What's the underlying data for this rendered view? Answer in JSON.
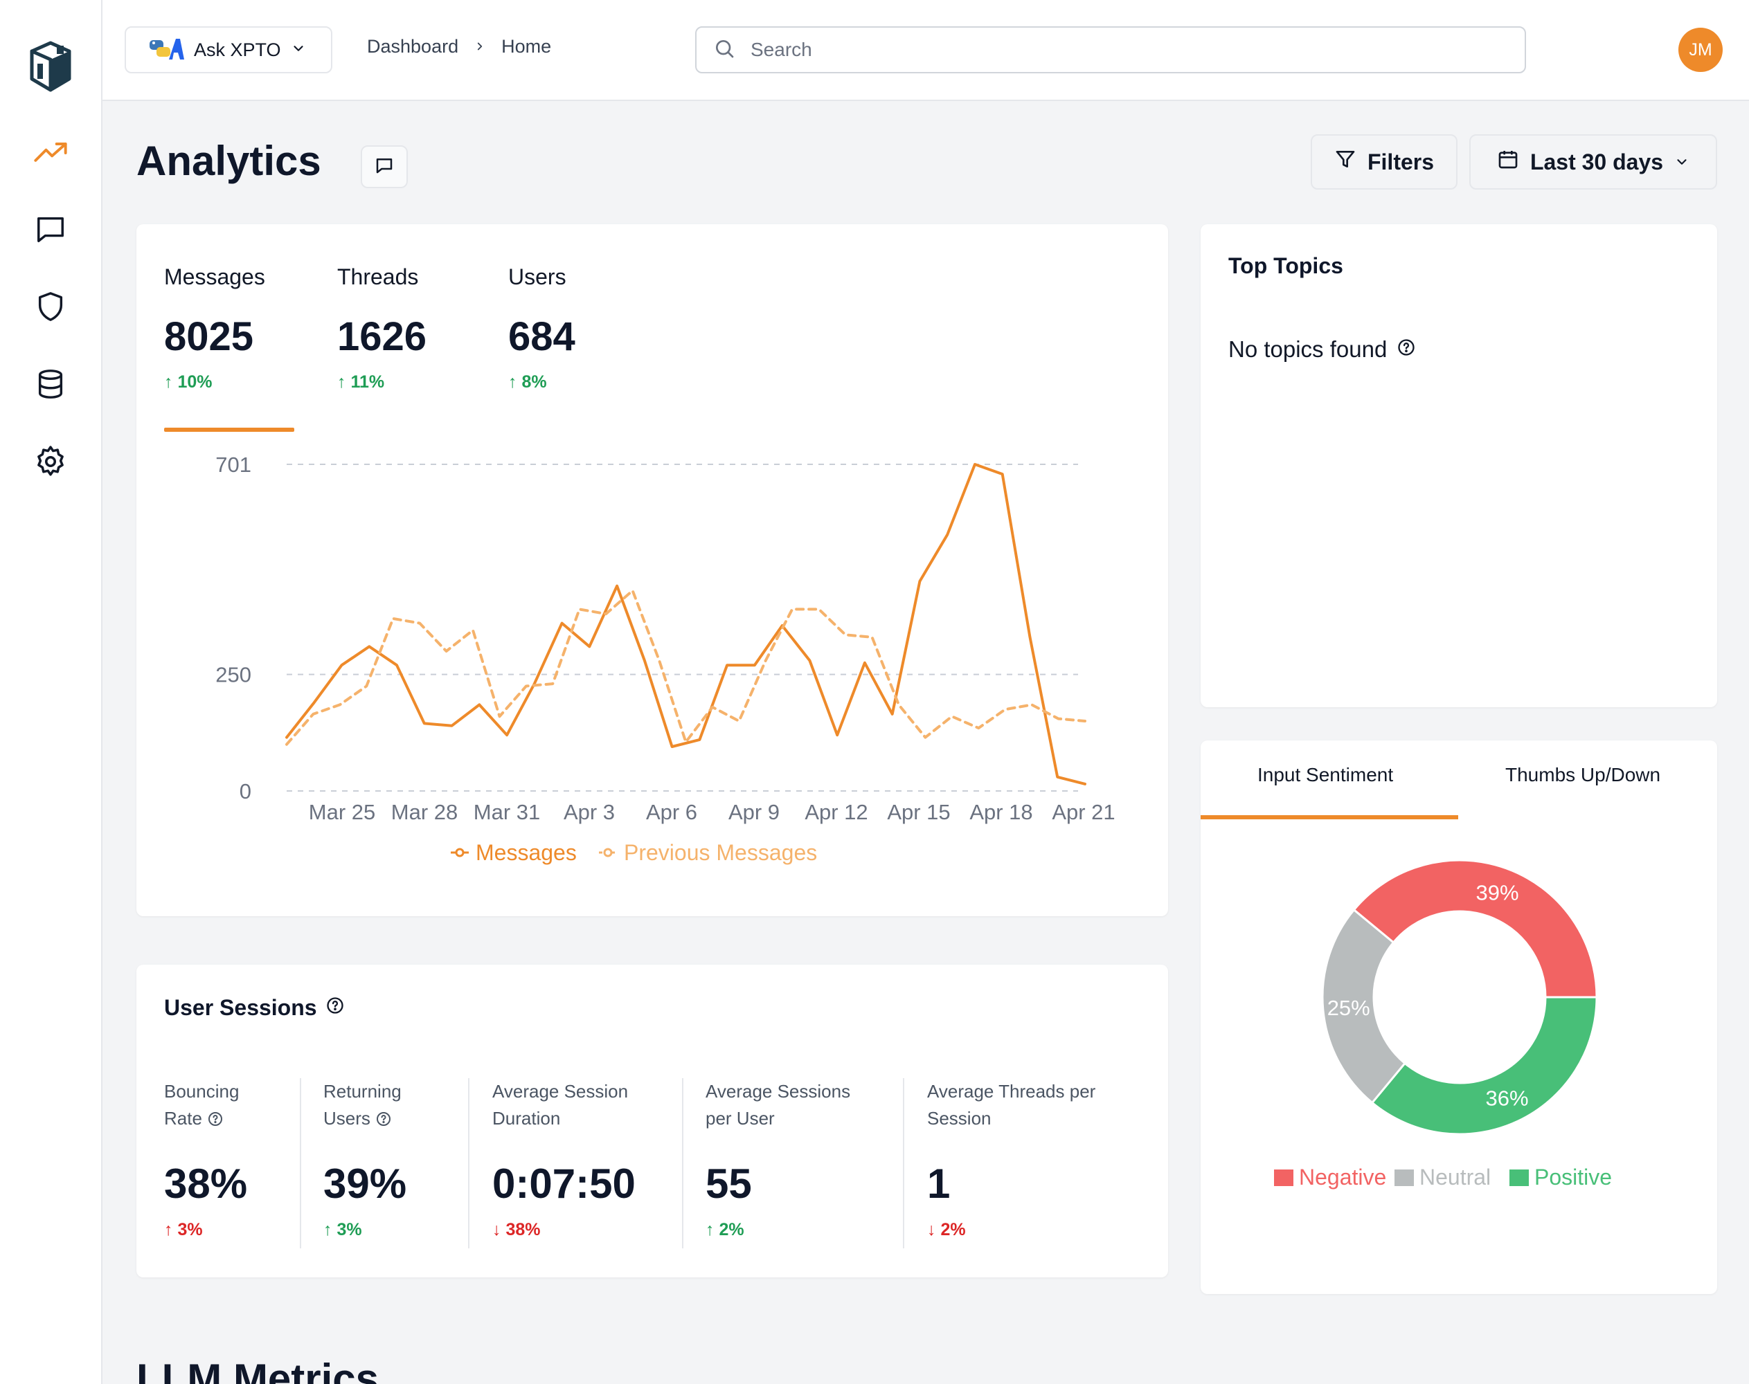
{
  "app": {
    "name": "Ask XPTO"
  },
  "breadcrumb": {
    "items": [
      "Dashboard",
      "Home"
    ]
  },
  "search": {
    "placeholder": "Search",
    "value": ""
  },
  "user": {
    "initials": "JM",
    "avatar_color": "#ee8a2a"
  },
  "page": {
    "title": "Analytics",
    "next_section_title": "LLM Metrics"
  },
  "toolbar": {
    "filters_label": "Filters",
    "range_label": "Last 30 days"
  },
  "metrics": [
    {
      "label": "Messages",
      "value": "8025",
      "delta": "10%",
      "direction": "up"
    },
    {
      "label": "Threads",
      "value": "1626",
      "delta": "11%",
      "direction": "up"
    },
    {
      "label": "Users",
      "value": "684",
      "delta": "8%",
      "direction": "up"
    }
  ],
  "chart_data": [
    {
      "type": "line",
      "title": "",
      "xlabel": "",
      "ylabel": "",
      "x_ticks": [
        "Mar 25",
        "Mar 28",
        "Mar 31",
        "Apr 3",
        "Apr 6",
        "Apr 9",
        "Apr 12",
        "Apr 15",
        "Apr 18",
        "Apr 21"
      ],
      "y_ticks": [
        0,
        250,
        701
      ],
      "ylim": [
        0,
        701
      ],
      "grid": true,
      "legend": "bottom",
      "series": [
        {
          "name": "Messages",
          "color": "#ee8a2a",
          "style": "solid",
          "values": [
            115,
            190,
            270,
            310,
            270,
            145,
            140,
            185,
            120,
            230,
            360,
            310,
            440,
            280,
            95,
            110,
            270,
            270,
            355,
            280,
            120,
            275,
            165,
            450,
            550,
            701,
            680,
            330,
            30,
            15
          ]
        },
        {
          "name": "Previous Messages",
          "color": "#f5b26b",
          "style": "dashed",
          "values": [
            100,
            165,
            185,
            225,
            370,
            360,
            300,
            345,
            160,
            225,
            230,
            390,
            380,
            430,
            280,
            105,
            180,
            150,
            280,
            390,
            390,
            335,
            330,
            185,
            115,
            160,
            135,
            175,
            185,
            155,
            150
          ]
        }
      ]
    },
    {
      "type": "pie",
      "title": "",
      "legend": "bottom",
      "tabs": [
        "Input Sentiment",
        "Thumbs Up/Down"
      ],
      "active_tab": "Input Sentiment",
      "slices": [
        {
          "name": "Negative",
          "value": 39,
          "label": "39%",
          "color": "#f26363"
        },
        {
          "name": "Positive",
          "value": 36,
          "label": "36%",
          "color": "#48bf78"
        },
        {
          "name": "Neutral",
          "value": 25,
          "label": "25%",
          "color": "#b8bcbd"
        }
      ],
      "legend_order": [
        "Negative",
        "Neutral",
        "Positive"
      ]
    }
  ],
  "topics": {
    "title": "Top Topics",
    "empty_text": "No topics found"
  },
  "sessions": {
    "title": "User Sessions",
    "stats": [
      {
        "label_lines": [
          "Bouncing",
          "Rate"
        ],
        "has_help": true,
        "value": "38%",
        "delta": "3%",
        "direction": "up",
        "tone": "down"
      },
      {
        "label_lines": [
          "Returning",
          "Users"
        ],
        "has_help": true,
        "value": "39%",
        "delta": "3%",
        "direction": "up",
        "tone": "up"
      },
      {
        "label_lines": [
          "Average Session",
          "Duration"
        ],
        "has_help": false,
        "value": "0:07:50",
        "delta": "38%",
        "direction": "down",
        "tone": "down"
      },
      {
        "label_lines": [
          "Average Sessions",
          "per User"
        ],
        "has_help": false,
        "value": "55",
        "delta": "2%",
        "direction": "up",
        "tone": "up"
      },
      {
        "label_lines": [
          "Average Threads per",
          "Session"
        ],
        "has_help": false,
        "value": "1",
        "delta": "2%",
        "direction": "down",
        "tone": "down"
      }
    ]
  },
  "icons": {
    "sidebar": [
      "analytics-trend-icon",
      "chat-icon",
      "shield-icon",
      "database-icon",
      "settings-gear-icon"
    ]
  },
  "colors": {
    "accent": "#ee8a2a",
    "up": "#1f9d55",
    "down": "#dc2626"
  }
}
